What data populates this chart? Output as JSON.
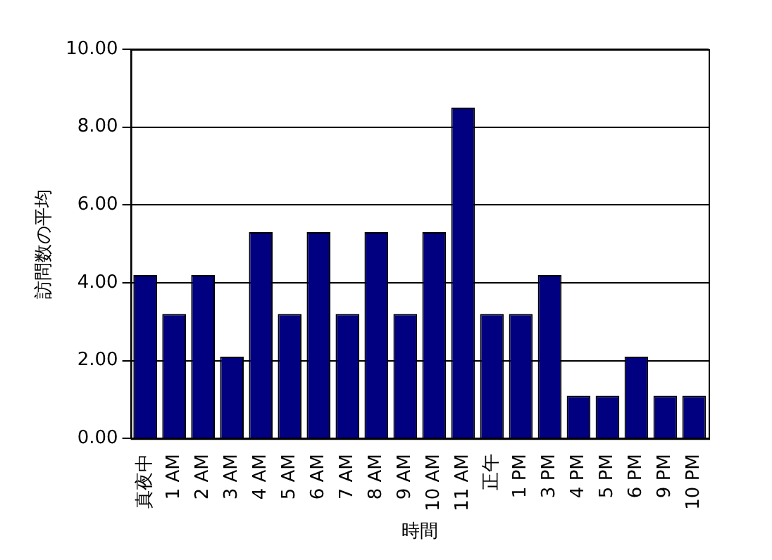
{
  "chart_data": {
    "type": "bar",
    "xlabel": "時間",
    "ylabel": "訪問数の平均",
    "categories": [
      "真夜中",
      "1 AM",
      "2 AM",
      "3 AM",
      "4 AM",
      "5 AM",
      "6 AM",
      "7 AM",
      "8 AM",
      "9 AM",
      "10 AM",
      "11 AM",
      "正午",
      "1 PM",
      "3 PM",
      "4 PM",
      "5 PM",
      "6 PM",
      "9 PM",
      "10 PM"
    ],
    "values": [
      4.2,
      3.2,
      4.2,
      2.1,
      5.3,
      3.2,
      5.3,
      3.2,
      5.3,
      3.2,
      5.3,
      8.5,
      3.2,
      3.2,
      4.2,
      1.1,
      1.1,
      2.1,
      1.1,
      1.1
    ],
    "color": "#000080",
    "ylim": [
      0,
      10
    ],
    "yticks": [
      {
        "value": 0,
        "label": "0.00"
      },
      {
        "value": 2,
        "label": "2.00"
      },
      {
        "value": 4,
        "label": "4.00"
      },
      {
        "value": 6,
        "label": "6.00"
      },
      {
        "value": 8,
        "label": "8.00"
      },
      {
        "value": 10,
        "label": "10.00"
      }
    ],
    "grid": "y",
    "legend": false
  }
}
